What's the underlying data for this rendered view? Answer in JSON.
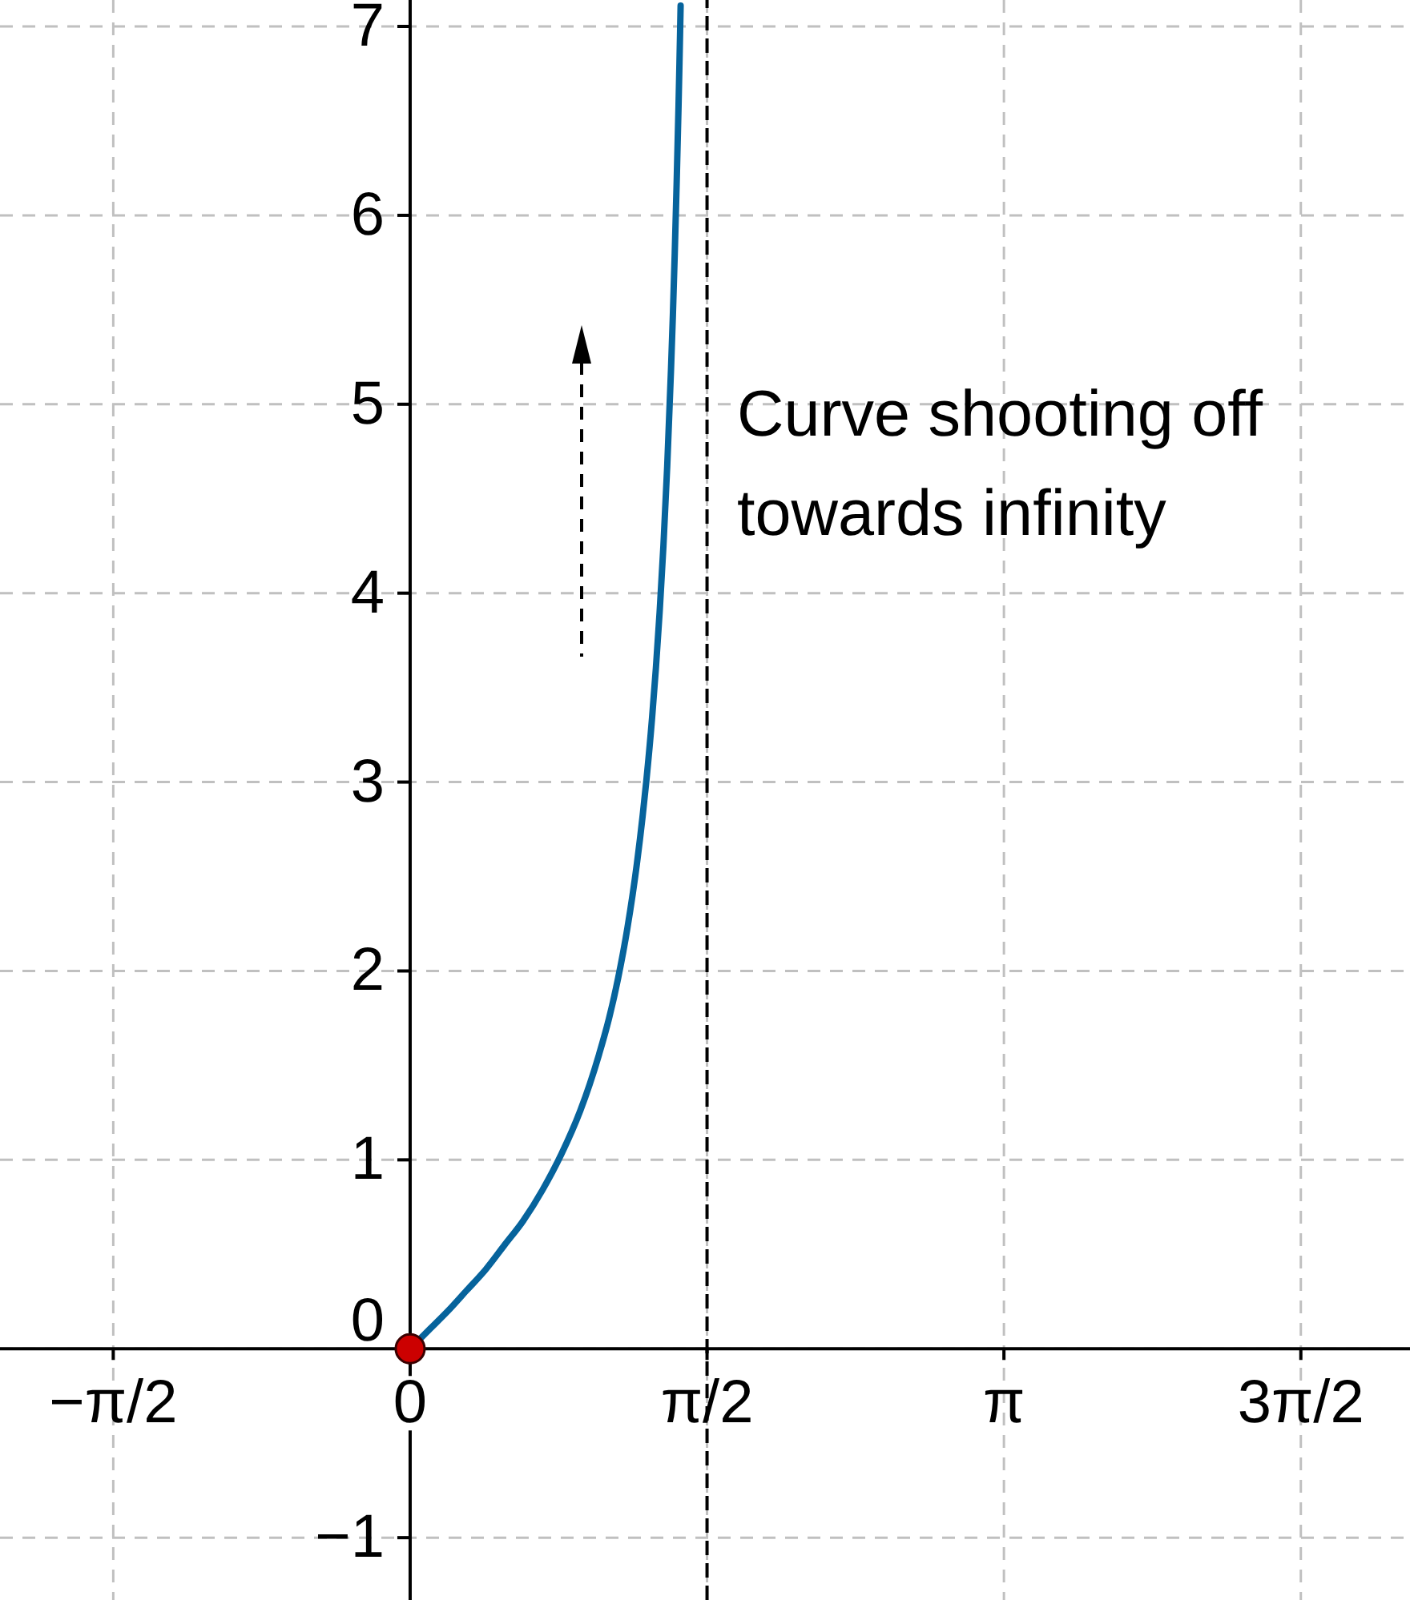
{
  "chart_data": {
    "type": "line",
    "xlim": [
      -2.17,
      5.29
    ],
    "ylim": [
      -1.33,
      7.14
    ],
    "xticks": [
      {
        "value": -1.5708,
        "label": "−π/2"
      },
      0,
      {
        "value": 1.5708,
        "label": "π/2"
      },
      {
        "value": 3.1416,
        "label": "π"
      },
      {
        "value": 4.7124,
        "label": "3π/2"
      }
    ],
    "yticks": [
      {
        "value": -1,
        "label": "−1"
      },
      0,
      1,
      2,
      3,
      4,
      5,
      6,
      7
    ],
    "grid": true,
    "ref_lines": [
      {
        "axis": "x",
        "value": 1.5708,
        "color": "#000000",
        "line_style": "dashed"
      }
    ],
    "annotations": [
      "Curve shooting off towards infinity"
    ],
    "series": [
      {
        "type": "line",
        "color": "#06639c",
        "x": [
          0,
          0.1,
          0.2,
          0.3,
          0.4,
          0.5,
          0.6,
          0.7,
          0.8,
          0.9,
          0.95,
          1.0,
          1.05,
          1.1,
          1.15,
          1.2,
          1.23,
          1.25,
          1.28,
          1.3,
          1.32,
          1.34,
          1.36,
          1.38,
          1.39,
          1.4,
          1.41,
          1.42,
          1.425,
          1.43,
          1.431
        ],
        "values": [
          0,
          0.1,
          0.2,
          0.31,
          0.42,
          0.55,
          0.68,
          0.84,
          1.03,
          1.26,
          1.4,
          1.56,
          1.74,
          1.96,
          2.23,
          2.57,
          2.82,
          3.01,
          3.34,
          3.6,
          3.9,
          4.25,
          4.67,
          5.18,
          5.47,
          5.8,
          6.17,
          6.58,
          6.81,
          7.06,
          7.11
        ]
      },
      {
        "type": "scatter",
        "color": "#cc0000",
        "marker": "circle",
        "x": [
          0
        ],
        "values": [
          0
        ]
      }
    ]
  }
}
